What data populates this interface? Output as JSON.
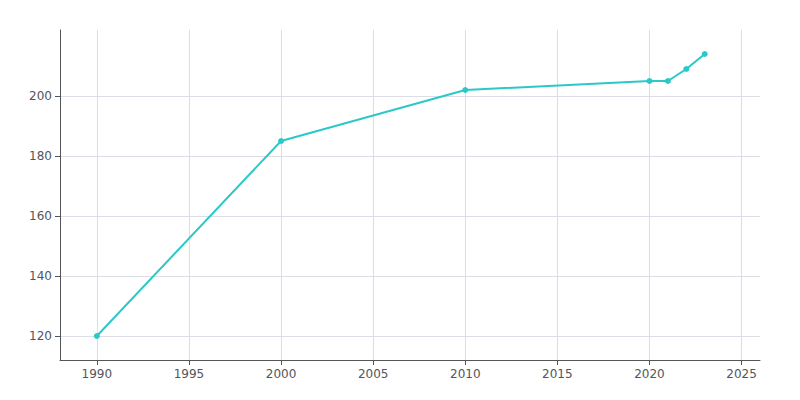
{
  "chart_data": {
    "type": "line",
    "x": [
      1990,
      2000,
      2010,
      2020,
      2021,
      2022,
      2023
    ],
    "values": [
      120,
      185,
      202,
      205,
      205,
      209,
      214
    ],
    "color": "#2bc8c8",
    "marker": "circle",
    "xlim": [
      1988,
      2026
    ],
    "xticks": [
      1990,
      1995,
      2000,
      2005,
      2010,
      2015,
      2020,
      2025
    ],
    "ylim": [
      112,
      222
    ],
    "yticks": [
      120,
      140,
      160,
      180,
      200
    ],
    "grid": true
  }
}
